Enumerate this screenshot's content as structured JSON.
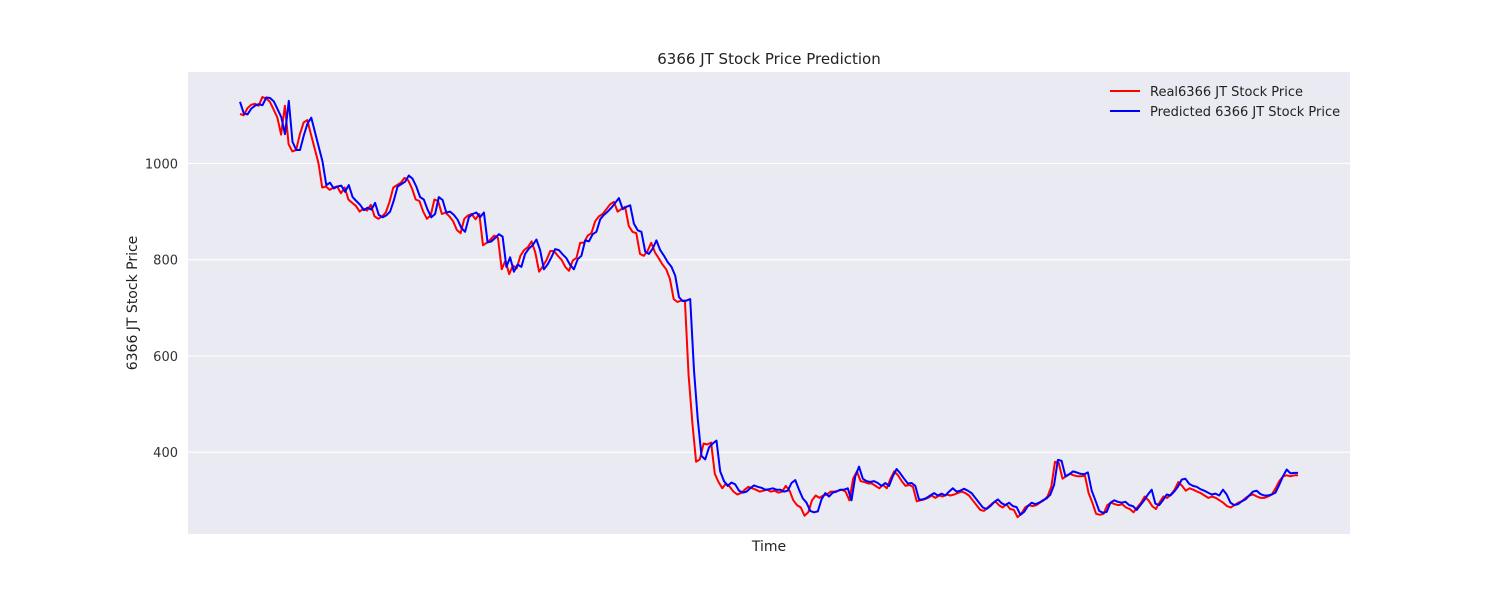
{
  "chart_data": {
    "type": "line",
    "title": "6366 JT Stock Price Prediction",
    "xlabel": "Time",
    "ylabel": "6366 JT Stock Price",
    "ylim": [
      230,
      1190
    ],
    "yticks": [
      400,
      600,
      800,
      1000
    ],
    "grid": true,
    "legend": "top-right",
    "background": "#eaeaf2",
    "series": [
      {
        "name": "Real6366 JT Stock Price",
        "color": "#ff0000",
        "values": [
          1103,
          1100,
          1115,
          1122,
          1124,
          1120,
          1138,
          1135,
          1128,
          1112,
          1095,
          1060,
          1120,
          1040,
          1025,
          1028,
          1060,
          1085,
          1090,
          1060,
          1030,
          1000,
          950,
          952,
          945,
          950,
          952,
          938,
          950,
          925,
          918,
          912,
          900,
          906,
          902,
          914,
          890,
          885,
          890,
          898,
          920,
          950,
          955,
          960,
          970,
          965,
          948,
          925,
          922,
          900,
          885,
          892,
          925,
          922,
          895,
          898,
          890,
          880,
          862,
          855,
          885,
          892,
          895,
          884,
          895,
          830,
          835,
          842,
          850,
          845,
          780,
          798,
          770,
          788,
          782,
          808,
          820,
          826,
          838,
          815,
          775,
          786,
          800,
          818,
          818,
          808,
          800,
          785,
          777,
          798,
          804,
          835,
          835,
          850,
          855,
          880,
          890,
          895,
          905,
          915,
          920,
          900,
          905,
          910,
          870,
          858,
          855,
          812,
          808,
          818,
          835,
          815,
          803,
          790,
          780,
          760,
          718,
          712,
          715,
          715,
          560,
          460,
          380,
          385,
          418,
          416,
          420,
          355,
          338,
          325,
          335,
          328,
          318,
          312,
          315,
          322,
          328,
          325,
          322,
          318,
          320,
          322,
          318,
          320,
          316,
          318,
          330,
          320,
          300,
          290,
          285,
          268,
          275,
          300,
          310,
          305,
          310,
          312,
          318,
          318,
          320,
          322,
          318,
          300,
          345,
          360,
          340,
          338,
          335,
          335,
          330,
          325,
          332,
          325,
          345,
          360,
          352,
          340,
          330,
          332,
          328,
          298,
          300,
          302,
          305,
          310,
          305,
          310,
          308,
          312,
          310,
          312,
          315,
          318,
          315,
          310,
          300,
          290,
          280,
          278,
          285,
          292,
          298,
          290,
          285,
          292,
          282,
          280,
          265,
          272,
          285,
          290,
          288,
          290,
          295,
          300,
          308,
          328,
          380,
          378,
          345,
          350,
          355,
          352,
          350,
          350,
          352,
          315,
          295,
          272,
          270,
          272,
          290,
          295,
          292,
          290,
          292,
          285,
          282,
          275,
          285,
          295,
          308,
          300,
          288,
          282,
          296,
          308,
          305,
          312,
          322,
          338,
          330,
          320,
          325,
          322,
          318,
          315,
          310,
          305,
          308,
          305,
          300,
          295,
          288,
          285,
          290,
          295,
          298,
          305,
          310,
          312,
          308,
          305,
          305,
          308,
          312,
          325,
          340,
          350,
          352,
          350,
          352,
          352
        ]
      },
      {
        "name": "Predicted 6366 JT Stock Price",
        "color": "#0000ff",
        "values": [
          1128,
          1104,
          1102,
          1114,
          1120,
          1123,
          1121,
          1137,
          1136,
          1129,
          1113,
          1096,
          1061,
          1130,
          1045,
          1028,
          1028,
          1058,
          1083,
          1095,
          1065,
          1034,
          1004,
          955,
          960,
          948,
          952,
          954,
          941,
          955,
          930,
          922,
          914,
          903,
          908,
          904,
          918,
          893,
          888,
          892,
          900,
          923,
          952,
          957,
          962,
          975,
          968,
          952,
          930,
          925,
          904,
          888,
          895,
          930,
          924,
          898,
          900,
          893,
          883,
          866,
          858,
          888,
          895,
          898,
          888,
          898,
          836,
          838,
          845,
          853,
          848,
          785,
          805,
          775,
          790,
          785,
          812,
          823,
          830,
          842,
          820,
          780,
          790,
          805,
          822,
          820,
          811,
          803,
          789,
          780,
          801,
          808,
          840,
          838,
          853,
          858,
          884,
          893,
          900,
          908,
          918,
          928,
          905,
          910,
          913,
          875,
          861,
          858,
          817,
          812,
          823,
          840,
          820,
          808,
          795,
          785,
          767,
          722,
          714,
          715,
          718,
          570,
          470,
          392,
          385,
          410,
          418,
          424,
          360,
          340,
          330,
          337,
          333,
          320,
          316,
          318,
          325,
          331,
          328,
          326,
          322,
          323,
          325,
          322,
          322,
          318,
          320,
          336,
          342,
          322,
          304,
          295,
          278,
          275,
          277,
          302,
          315,
          308,
          316,
          318,
          322,
          322,
          325,
          300,
          350,
          370,
          345,
          340,
          338,
          340,
          336,
          330,
          336,
          330,
          350,
          365,
          356,
          345,
          335,
          336,
          330,
          301,
          302,
          305,
          310,
          315,
          310,
          314,
          310,
          318,
          325,
          318,
          320,
          324,
          320,
          315,
          305,
          295,
          285,
          282,
          288,
          296,
          302,
          294,
          290,
          295,
          288,
          286,
          270,
          276,
          288,
          295,
          292,
          295,
          300,
          304,
          312,
          332,
          384,
          382,
          350,
          354,
          360,
          358,
          355,
          354,
          358,
          320,
          300,
          278,
          274,
          276,
          295,
          300,
          297,
          295,
          297,
          290,
          288,
          280,
          290,
          300,
          312,
          322,
          293,
          290,
          300,
          312,
          310,
          318,
          328,
          343,
          345,
          334,
          330,
          328,
          323,
          320,
          316,
          312,
          314,
          310,
          322,
          312,
          295,
          290,
          292,
          298,
          302,
          310,
          318,
          320,
          313,
          310,
          310,
          312,
          316,
          332,
          350,
          364,
          356,
          357,
          357
        ]
      }
    ]
  }
}
